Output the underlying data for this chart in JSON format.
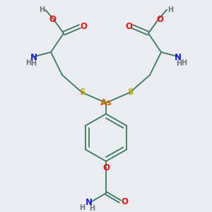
{
  "bg_color": "#eaecf2",
  "colors": {
    "bond": "#3a7a5a",
    "C": "#3a7a5a",
    "H": "#707878",
    "N": "#2020dd",
    "O": "#ee1111",
    "S": "#ccaa00",
    "As": "#cc6600"
  },
  "fig_size": [
    3.0,
    3.0
  ],
  "dpi": 100
}
